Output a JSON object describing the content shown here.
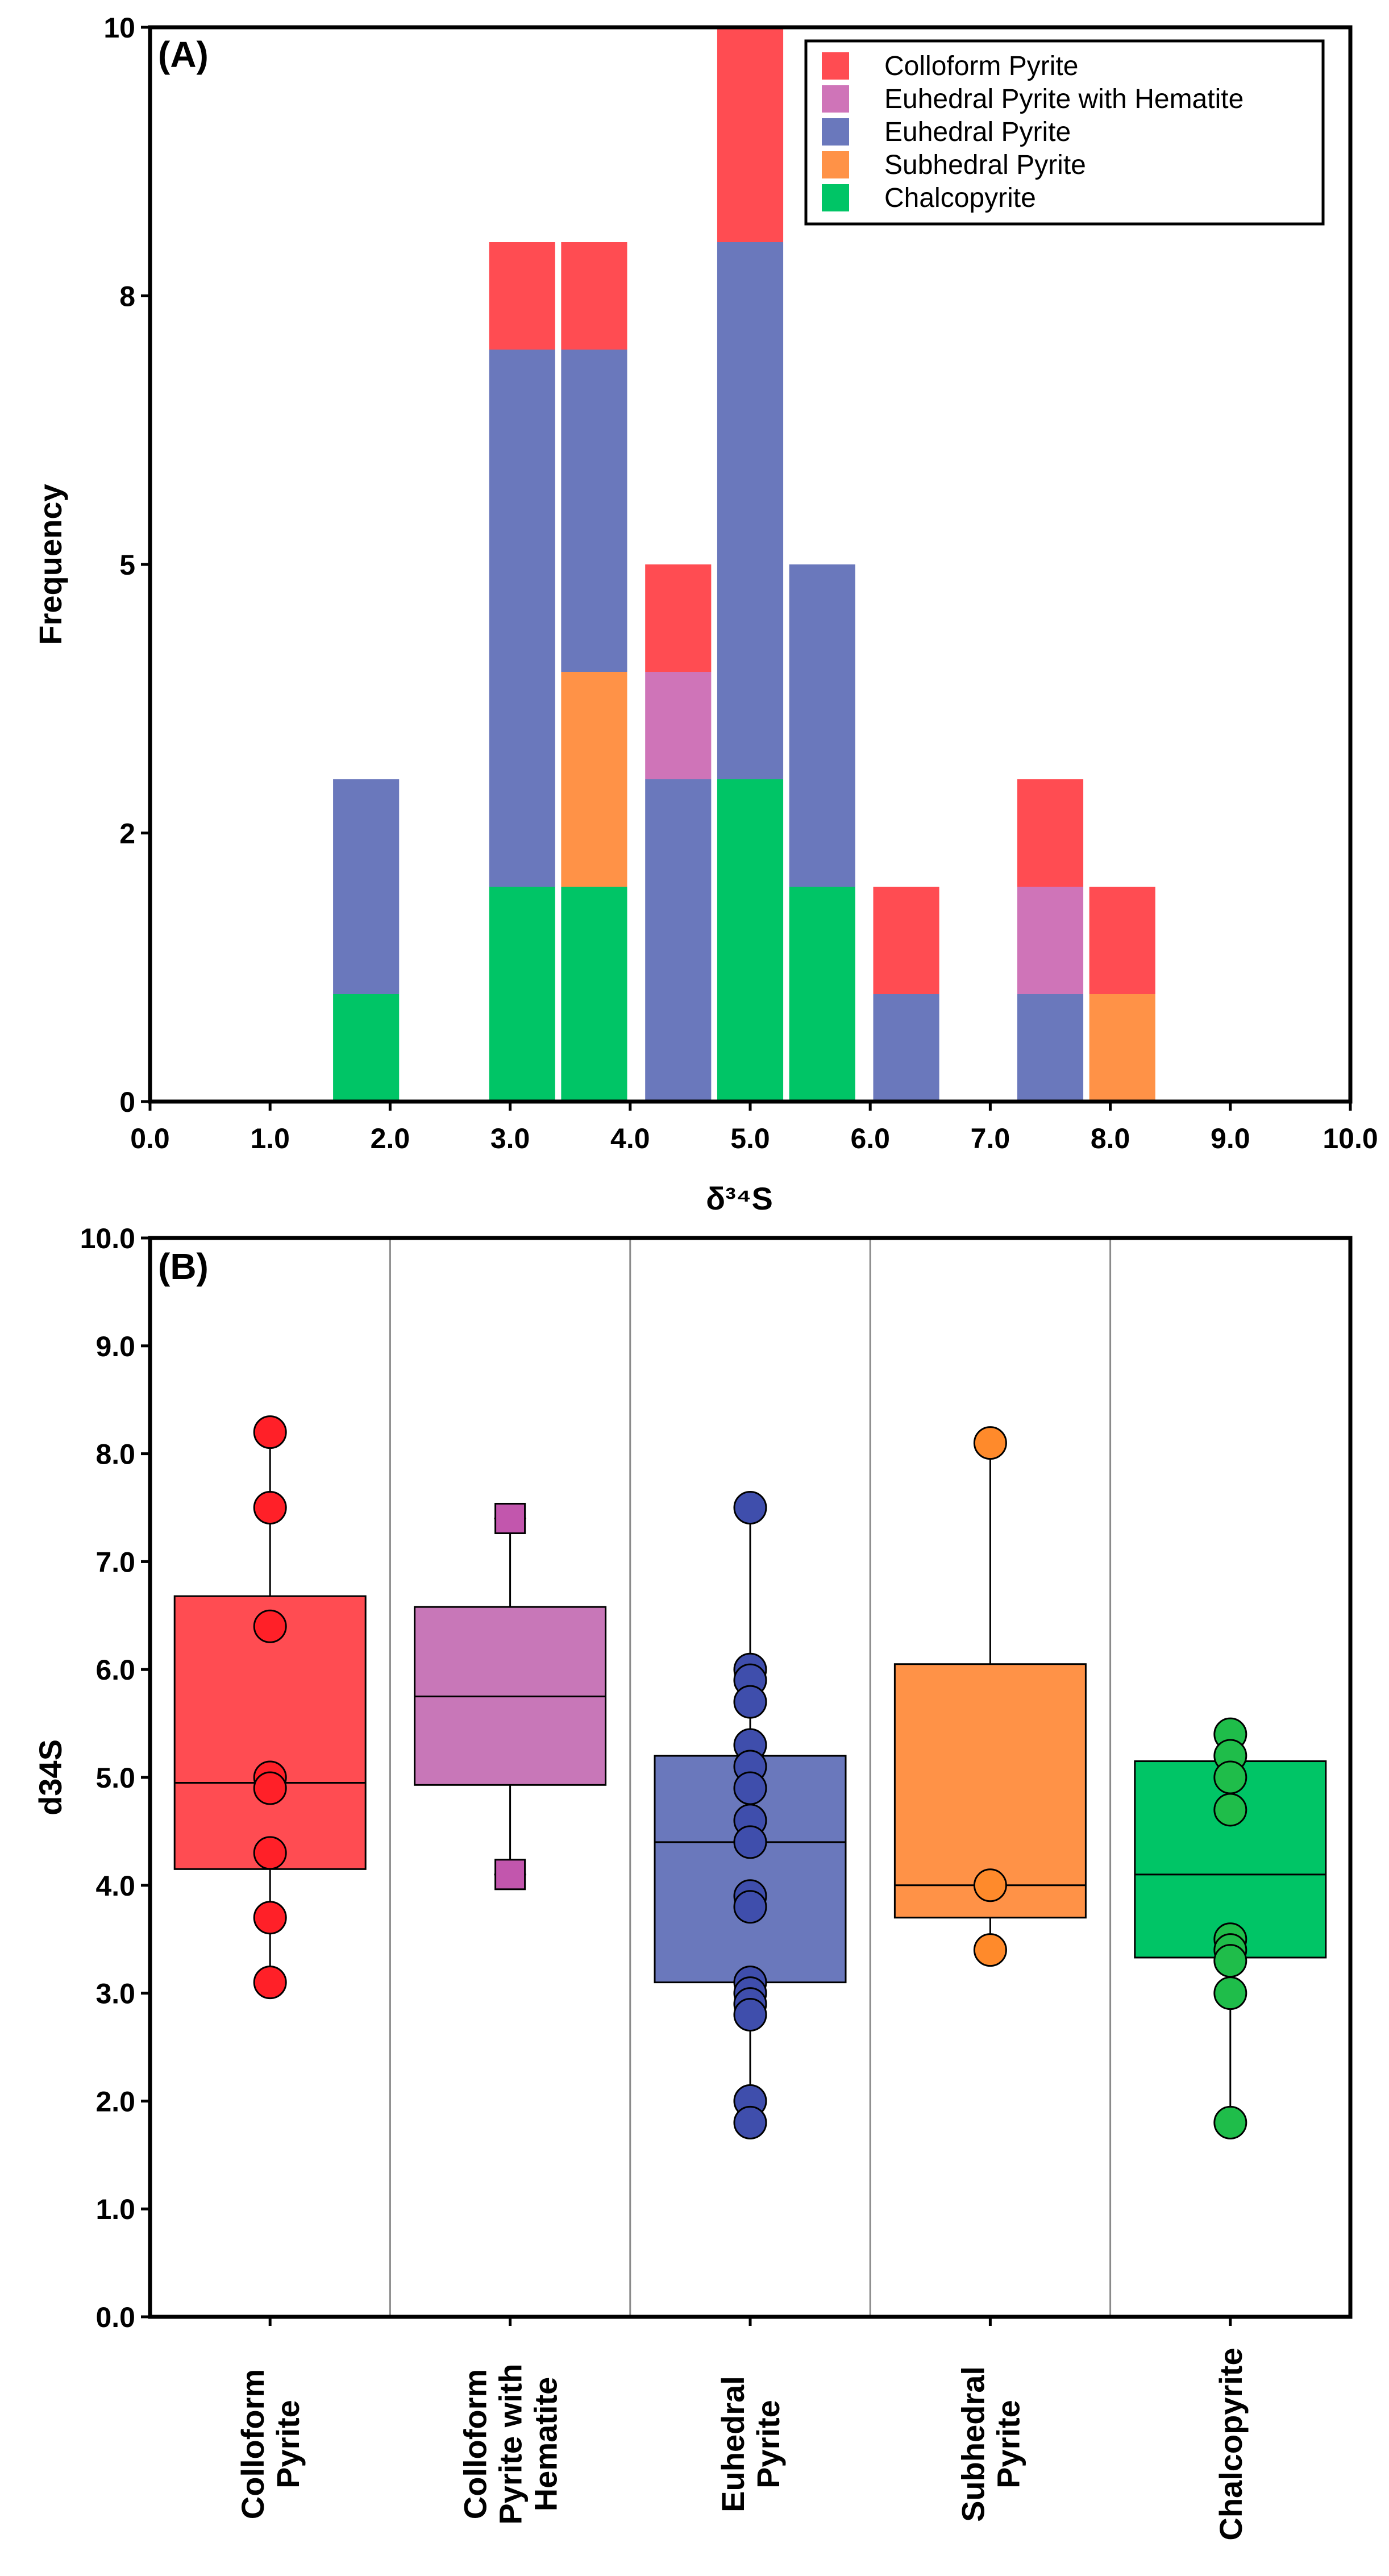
{
  "chart_data": [
    {
      "type": "bar",
      "stacked": true,
      "panel_label": "(A)",
      "xlabel": "δ³⁴S",
      "ylabel": "Frequency",
      "xlim": [
        0,
        10
      ],
      "ylim": [
        0,
        10
      ],
      "x_ticks": [
        "0.0",
        "1.0",
        "2.0",
        "3.0",
        "4.0",
        "5.0",
        "6.0",
        "7.0",
        "8.0",
        "9.0",
        "10.0"
      ],
      "y_ticks": [
        "0",
        "2",
        "5",
        "8",
        "10"
      ],
      "y_tick_values": [
        0,
        2.5,
        5,
        7.5,
        10
      ],
      "bin_width": 0.55,
      "bins": [
        1.8,
        3.1,
        3.7,
        4.4,
        5.0,
        5.6,
        6.3,
        7.5,
        8.1
      ],
      "legend_position": "top-right",
      "series": [
        {
          "name": "Chalcopyrite",
          "color": "#00c566",
          "values": [
            1,
            2,
            2,
            0,
            3,
            2,
            0,
            0,
            0
          ]
        },
        {
          "name": "Subhedral Pyrite",
          "color": "#ff9247",
          "values": [
            0,
            0,
            2,
            0,
            0,
            0,
            0,
            0,
            1
          ]
        },
        {
          "name": "Euhedral Pyrite",
          "color": "#6a78bc",
          "values": [
            2,
            5,
            3,
            3,
            5,
            3,
            1,
            1,
            0
          ]
        },
        {
          "name": "Euhedral Pyrite with Hematite",
          "color": "#cf74b8",
          "values": [
            0,
            0,
            0,
            1,
            0,
            0,
            0,
            1,
            0
          ]
        },
        {
          "name": "Colloform Pyrite",
          "color": "#ff4c52",
          "values": [
            0,
            1,
            1,
            1,
            2,
            0,
            1,
            1,
            1
          ]
        }
      ],
      "legend_order": [
        "Colloform Pyrite",
        "Euhedral Pyrite with Hematite",
        "Euhedral Pyrite",
        "Subhedral Pyrite",
        "Chalcopyrite"
      ]
    },
    {
      "type": "box",
      "panel_label": "(B)",
      "ylabel": "d34S",
      "ylim": [
        0,
        10
      ],
      "y_ticks": [
        "0.0",
        "1.0",
        "2.0",
        "3.0",
        "4.0",
        "5.0",
        "6.0",
        "7.0",
        "8.0",
        "9.0",
        "10.0"
      ],
      "categories": [
        {
          "label_lines": [
            "Colloform",
            "Pyrite"
          ],
          "color": "#ff4c52",
          "marker_color": "#ff2028",
          "marker": "circle",
          "q1": 4.15,
          "median": 4.95,
          "q3": 6.68,
          "whisker_low": 3.1,
          "whisker_high": 8.2,
          "points": [
            8.2,
            7.5,
            6.4,
            5.0,
            4.9,
            4.3,
            3.7,
            3.1
          ]
        },
        {
          "label_lines": [
            "Colloform",
            "Pyrite with",
            "Hematite"
          ],
          "color": "#c877b8",
          "marker_color": "#c256ad",
          "marker": "square",
          "q1": 4.93,
          "median": 5.75,
          "q3": 6.58,
          "whisker_low": 4.1,
          "whisker_high": 7.4,
          "points": [
            7.4,
            4.1
          ]
        },
        {
          "label_lines": [
            "Euhedral",
            "Pyrite"
          ],
          "color": "#6a78bc",
          "marker_color": "#3f4eac",
          "marker": "circle",
          "q1": 3.1,
          "median": 4.4,
          "q3": 5.2,
          "whisker_low": 1.8,
          "whisker_high": 7.5,
          "points": [
            7.5,
            6.0,
            5.9,
            5.7,
            5.3,
            5.1,
            4.9,
            4.6,
            4.4,
            3.9,
            3.8,
            3.1,
            3.0,
            2.9,
            2.8,
            2.0,
            1.8
          ]
        },
        {
          "label_lines": [
            "Subhedral",
            "Pyrite"
          ],
          "color": "#ff9247",
          "marker_color": "#ff8a2b",
          "marker": "circle",
          "q1": 3.7,
          "median": 4.0,
          "q3": 6.05,
          "whisker_low": 3.4,
          "whisker_high": 8.1,
          "points": [
            8.1,
            4.0,
            3.4
          ]
        },
        {
          "label_lines": [
            "Chalcopyrite"
          ],
          "color": "#00c566",
          "marker_color": "#1fbd4a",
          "marker": "circle",
          "q1": 3.33,
          "median": 4.1,
          "q3": 5.15,
          "whisker_low": 1.8,
          "whisker_high": 5.4,
          "points": [
            5.4,
            5.2,
            5.0,
            4.7,
            3.5,
            3.4,
            3.3,
            3.0,
            1.8
          ]
        }
      ]
    }
  ]
}
